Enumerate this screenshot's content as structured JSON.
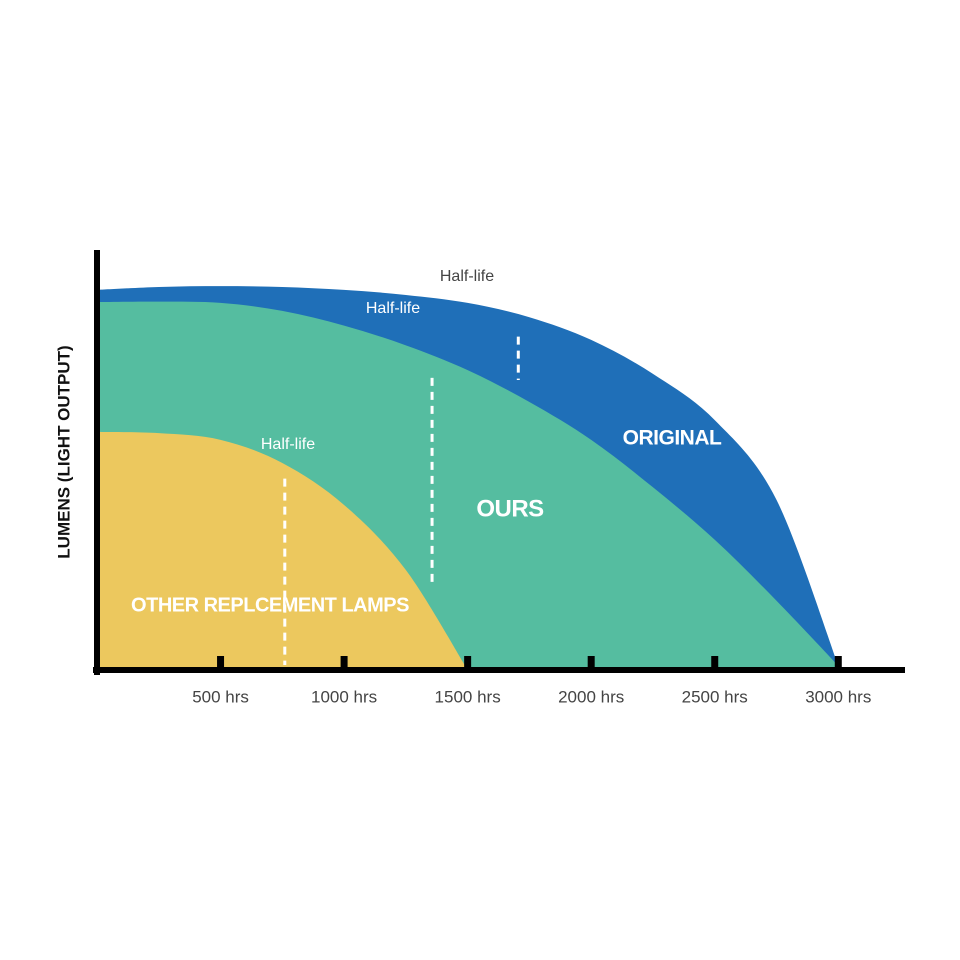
{
  "chart_data": {
    "type": "area",
    "y_label": "LUMENS (LIGHT OUTPUT)",
    "x": [
      0,
      250,
      500,
      750,
      1000,
      1250,
      1500,
      1750,
      2000,
      2250,
      2500,
      2750,
      3000
    ],
    "series": [
      {
        "name": "ORIGINAL",
        "color": "#1f6fb8",
        "values": [
          90.5,
          91.2,
          91.4,
          91.2,
          90.5,
          89.3,
          87.4,
          84,
          78.6,
          70.5,
          59.5,
          40.5,
          1
        ]
      },
      {
        "name": "OURS",
        "color": "#55bda0",
        "values": [
          87.6,
          87.7,
          87.4,
          85.5,
          82,
          77.3,
          71.4,
          63.8,
          54.8,
          43.5,
          31,
          16.5,
          1
        ]
      },
      {
        "name": "OTHER REPLCEMENT LAMPS",
        "color": "#ecc85e",
        "values": [
          56.7,
          56.4,
          54.8,
          49.3,
          39.3,
          23.8,
          0,
          null,
          null,
          null,
          null,
          null,
          null
        ]
      }
    ],
    "annotations": [
      {
        "label": "Half-life",
        "x": 760
      },
      {
        "label": "Half-life",
        "x": 1356
      },
      {
        "label": "Half-life",
        "x": 1705
      }
    ],
    "xlim": [
      0,
      3270
    ],
    "ylim": [
      0,
      100
    ],
    "xticks": [
      {
        "value": 500,
        "label": "500 hrs"
      },
      {
        "value": 1000,
        "label": "1000 hrs"
      },
      {
        "value": 1500,
        "label": "1500 hrs"
      },
      {
        "value": 2000,
        "label": "2000 hrs"
      },
      {
        "value": 2500,
        "label": "2500 hrs"
      },
      {
        "value": 3000,
        "label": "3000 hrs"
      }
    ]
  }
}
